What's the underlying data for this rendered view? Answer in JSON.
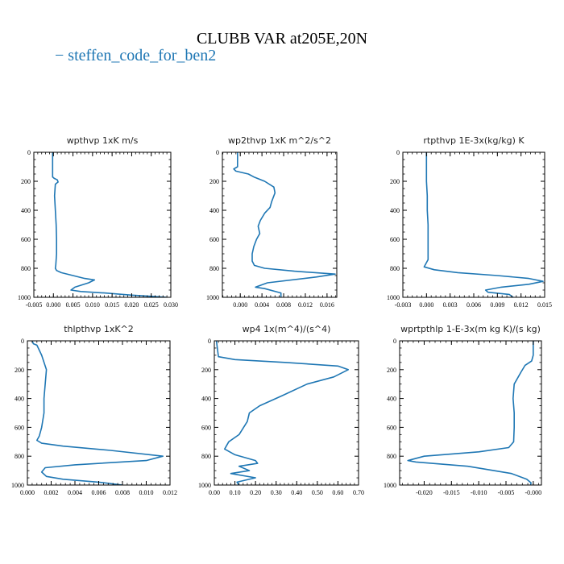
{
  "title": "CLUBB VAR at205E,20N",
  "legend": {
    "label": "steffen_code_for_ben2",
    "color": "#1f77b4"
  },
  "chart_data": [
    {
      "type": "line",
      "title": "wpthvp  1xK m/s",
      "xlim": [
        -0.005,
        0.03
      ],
      "ylim": [
        1000,
        0
      ],
      "xticks": [
        -0.005,
        0.0,
        0.005,
        0.01,
        0.015,
        0.02,
        0.025,
        0.03
      ],
      "xtick_labels": [
        "-0.005",
        "0.000",
        "0.005",
        "0.010",
        "0.015",
        "0.020",
        "0.025",
        "0.030"
      ],
      "yticks": [
        0,
        200,
        400,
        600,
        800,
        1000
      ],
      "ytick_labels": [
        "0",
        "200",
        "400",
        "600",
        "800",
        "1000"
      ],
      "grid": false,
      "series": [
        {
          "x": [
            -0.0002,
            -0.0002,
            0.0002,
            0.001,
            0.0012,
            0.0005,
            0.0003,
            0.0005,
            0.0007,
            0.0008,
            0.0008,
            0.0006,
            0.0005,
            0.0008,
            0.002,
            0.005,
            0.008,
            0.0105,
            0.009,
            0.0055,
            0.0045,
            0.007,
            0.013,
            0.02,
            0.026,
            0.029
          ],
          "y": [
            0,
            170,
            180,
            190,
            205,
            220,
            300,
            400,
            500,
            600,
            700,
            780,
            800,
            815,
            830,
            850,
            870,
            880,
            900,
            930,
            950,
            960,
            970,
            985,
            995,
            1000
          ]
        }
      ]
    },
    {
      "type": "line",
      "title": "wp2thvp  1xK m^2/s^2",
      "xlim": [
        -0.0033,
        0.0178
      ],
      "ylim": [
        1000,
        0
      ],
      "xticks": [
        0.0,
        0.004,
        0.008,
        0.012,
        0.016
      ],
      "xtick_labels": [
        "0.000",
        "0.004",
        "0.008",
        "0.012",
        "0.016"
      ],
      "yticks": [
        0,
        200,
        400,
        600,
        800,
        1000
      ],
      "ytick_labels": [
        "0",
        "200",
        "400",
        "600",
        "800",
        "1000"
      ],
      "grid": false,
      "series": [
        {
          "x": [
            -0.0005,
            -0.0005,
            -0.0012,
            -0.0008,
            0.0015,
            0.0025,
            0.0045,
            0.0062,
            0.0064,
            0.0058,
            0.0055,
            0.0045,
            0.0037,
            0.0033,
            0.0036,
            0.003,
            0.0025,
            0.0022,
            0.0022,
            0.0026,
            0.0045,
            0.01,
            0.0175,
            0.014,
            0.005,
            0.0028,
            0.0045,
            0.0075,
            0.0075
          ],
          "y": [
            0,
            100,
            115,
            130,
            150,
            170,
            200,
            240,
            280,
            340,
            380,
            420,
            470,
            510,
            560,
            600,
            650,
            700,
            750,
            780,
            800,
            820,
            840,
            860,
            900,
            930,
            940,
            970,
            1000
          ]
        }
      ]
    },
    {
      "type": "line",
      "title": "rtpthvp  1E-3x(kg/kg) K",
      "xlim": [
        -0.003,
        0.015
      ],
      "ylim": [
        1000,
        0
      ],
      "xticks": [
        -0.003,
        0.0,
        0.003,
        0.006,
        0.009,
        0.012,
        0.015
      ],
      "xtick_labels": [
        "-0.003",
        "0.000",
        "0.003",
        "0.006",
        "0.009",
        "0.012",
        "0.015"
      ],
      "yticks": [
        0,
        200,
        400,
        600,
        800,
        1000
      ],
      "ytick_labels": [
        "0",
        "200",
        "400",
        "600",
        "800",
        "1000"
      ],
      "grid": false,
      "series": [
        {
          "x": [
            0.0,
            0.0,
            0.0001,
            0.0001,
            0.0002,
            0.0002,
            0.0002,
            0.0002,
            -0.0003,
            0.001,
            0.004,
            0.009,
            0.013,
            0.0148,
            0.013,
            0.0095,
            0.0075,
            0.0078,
            0.0105,
            0.011
          ],
          "y": [
            0,
            200,
            300,
            400,
            500,
            600,
            700,
            740,
            790,
            810,
            830,
            850,
            870,
            890,
            910,
            930,
            950,
            965,
            980,
            1000
          ]
        }
      ]
    },
    {
      "type": "line",
      "title": "thlpthvp  1xK^2",
      "xlim": [
        0.0,
        0.012
      ],
      "ylim": [
        1000,
        0
      ],
      "xticks": [
        0.0,
        0.002,
        0.004,
        0.006,
        0.008,
        0.01,
        0.012
      ],
      "xtick_labels": [
        "0.000",
        "0.002",
        "0.004",
        "0.006",
        "0.008",
        "0.010",
        "0.012"
      ],
      "yticks": [
        0,
        200,
        400,
        600,
        800,
        1000
      ],
      "ytick_labels": [
        "0",
        "200",
        "400",
        "600",
        "800",
        "1000"
      ],
      "grid": false,
      "series": [
        {
          "x": [
            0.0004,
            0.0005,
            0.0008,
            0.0012,
            0.0016,
            0.0015,
            0.0014,
            0.0014,
            0.0012,
            0.001,
            0.0008,
            0.0012,
            0.003,
            0.007,
            0.0114,
            0.01,
            0.004,
            0.0015,
            0.0012,
            0.0016,
            0.003,
            0.006,
            0.008
          ],
          "y": [
            0,
            20,
            30,
            100,
            200,
            300,
            400,
            500,
            600,
            660,
            690,
            710,
            730,
            760,
            800,
            830,
            860,
            880,
            910,
            940,
            960,
            980,
            1000
          ]
        }
      ]
    },
    {
      "type": "line",
      "title": "wp4  1x(m^4)/(s^4)",
      "xlim": [
        0.0,
        0.7
      ],
      "ylim": [
        1000,
        0
      ],
      "xticks": [
        0.0,
        0.1,
        0.2,
        0.3,
        0.4,
        0.5,
        0.6,
        0.7
      ],
      "xtick_labels": [
        "0.00",
        "0.10",
        "0.20",
        "0.30",
        "0.40",
        "0.50",
        "0.60",
        "0.70"
      ],
      "yticks": [
        0,
        200,
        400,
        600,
        800,
        1000
      ],
      "ytick_labels": [
        "0",
        "200",
        "400",
        "600",
        "800",
        "1000"
      ],
      "grid": false,
      "series": [
        {
          "x": [
            0.01,
            0.02,
            0.1,
            0.35,
            0.6,
            0.65,
            0.58,
            0.45,
            0.33,
            0.22,
            0.17,
            0.16,
            0.12,
            0.07,
            0.05,
            0.1,
            0.2,
            0.21,
            0.12,
            0.17,
            0.08,
            0.2,
            0.11,
            0.12
          ],
          "y": [
            0,
            110,
            130,
            150,
            175,
            200,
            250,
            300,
            380,
            450,
            500,
            560,
            650,
            700,
            750,
            790,
            830,
            850,
            870,
            900,
            920,
            950,
            980,
            1000
          ]
        }
      ]
    },
    {
      "type": "line",
      "title": "wprtpthlp  1-E-3x(m kg K)/(s kg)",
      "xlim": [
        -0.0245,
        0.0015
      ],
      "ylim": [
        1000,
        0
      ],
      "xticks": [
        -0.02,
        -0.015,
        -0.01,
        -0.005,
        0.0
      ],
      "xtick_labels": [
        "-0.020",
        "-0.015",
        "-0.010",
        "-0.005",
        "-0.000"
      ],
      "yticks": [
        0,
        200,
        400,
        600,
        800,
        1000
      ],
      "ytick_labels": [
        "0",
        "200",
        "400",
        "600",
        "800",
        "1000"
      ],
      "grid": false,
      "series": [
        {
          "x": [
            0.0,
            0.0,
            -0.0003,
            -0.0015,
            -0.0023,
            -0.0035,
            -0.0037,
            -0.0035,
            -0.0035,
            -0.0036,
            -0.0045,
            -0.01,
            -0.02,
            -0.023,
            -0.0215,
            -0.012,
            -0.004,
            -0.0012,
            -0.0004,
            -0.0005
          ],
          "y": [
            0,
            100,
            140,
            170,
            220,
            300,
            400,
            500,
            600,
            700,
            740,
            770,
            800,
            830,
            840,
            870,
            920,
            960,
            985,
            1000
          ]
        }
      ]
    }
  ]
}
